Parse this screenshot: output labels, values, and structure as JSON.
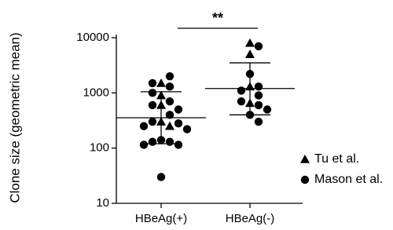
{
  "chart_data": {
    "type": "scatter",
    "y_label": "Clone size (geometric mean)",
    "categories": [
      "HBeAg(+)",
      "HBeAg(-)"
    ],
    "log_scale": true,
    "ylim": [
      10,
      10000
    ],
    "yticks": [
      10,
      100,
      1000,
      10000
    ],
    "series": [
      {
        "name": "Tu et al.",
        "marker": "triangle",
        "color": "#000000",
        "x": [
          0,
          0,
          0,
          0,
          0,
          1,
          1,
          1,
          1
        ],
        "values": [
          1500,
          900,
          600,
          300,
          250,
          8000,
          5000,
          1300,
          650
        ]
      },
      {
        "name": "Mason et al.",
        "marker": "circle",
        "color": "#000000",
        "x": [
          0,
          0,
          0,
          0,
          0,
          0,
          0,
          0,
          0,
          0,
          0,
          0,
          0,
          0,
          0,
          0,
          0,
          0,
          1,
          1,
          1,
          1,
          1,
          1,
          1,
          1,
          1,
          1
        ],
        "values": [
          2000,
          1500,
          1300,
          1000,
          700,
          600,
          500,
          400,
          300,
          280,
          250,
          220,
          140,
          130,
          130,
          115,
          115,
          30,
          7000,
          2200,
          1300,
          1100,
          900,
          700,
          600,
          500,
          400,
          300
        ]
      }
    ],
    "summary": {
      "mean": [
        355,
        1200
      ],
      "upper": [
        1050,
        3500
      ],
      "lower": [
        120,
        400
      ]
    },
    "annotation": "**",
    "legend": "right"
  }
}
